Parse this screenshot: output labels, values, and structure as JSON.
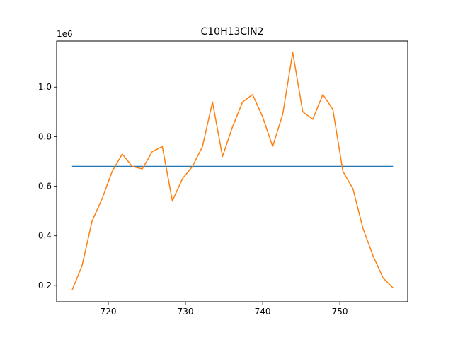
{
  "chart_data": {
    "type": "line",
    "title": "C10H13ClN2",
    "xlabel": "",
    "ylabel": "",
    "y_offset_label": "1e6",
    "xlim": [
      713.3,
      758.8
    ],
    "ylim": [
      0.134,
      1.186
    ],
    "xticks": [
      720,
      730,
      740,
      750
    ],
    "xtick_labels": [
      "720",
      "730",
      "740",
      "750"
    ],
    "yticks": [
      0.2,
      0.4,
      0.6,
      0.8,
      1.0
    ],
    "ytick_labels": [
      "0.2",
      "0.4",
      "0.6",
      "0.8",
      "1.0"
    ],
    "grid": false,
    "series": [
      {
        "color": "#1f77b4",
        "x": [
          715.3,
          756.9
        ],
        "y": [
          0.68,
          0.68
        ]
      },
      {
        "color": "#ff7f0e",
        "x": [
          715.3,
          716.6,
          717.9,
          719.2,
          720.5,
          721.8,
          723.1,
          724.4,
          725.7,
          727.0,
          728.3,
          729.6,
          730.9,
          732.2,
          733.5,
          734.8,
          736.1,
          737.4,
          738.7,
          740.0,
          741.3,
          742.6,
          743.9,
          745.2,
          746.5,
          747.8,
          749.1,
          750.4,
          751.7,
          753.0,
          754.3,
          755.6,
          756.9
        ],
        "y": [
          0.18,
          0.28,
          0.46,
          0.55,
          0.66,
          0.73,
          0.68,
          0.67,
          0.74,
          0.76,
          0.54,
          0.63,
          0.68,
          0.76,
          0.94,
          0.72,
          0.84,
          0.94,
          0.97,
          0.88,
          0.76,
          0.89,
          1.14,
          0.9,
          0.87,
          0.97,
          0.91,
          0.66,
          0.59,
          0.43,
          0.32,
          0.23,
          0.19
        ]
      }
    ]
  }
}
